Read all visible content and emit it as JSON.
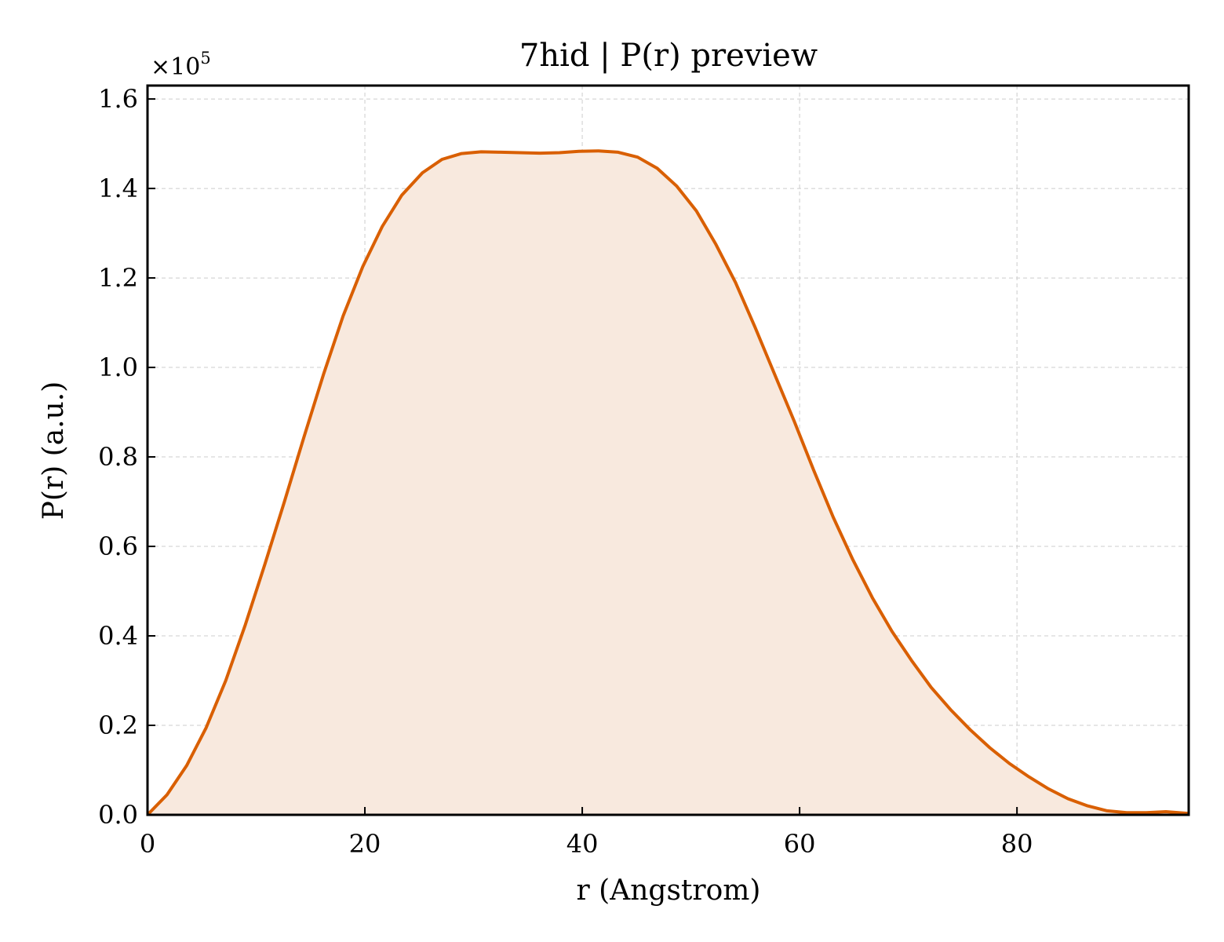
{
  "chart_data": {
    "type": "area",
    "title": "7hid | P(r) preview",
    "xlabel": "r (Angstrom)",
    "ylabel": "P(r) (a.u.)",
    "y_multiplier_label": "×10",
    "y_multiplier_exponent": "5",
    "xlim": [
      0,
      95.8
    ],
    "ylim": [
      0,
      1.63
    ],
    "x_ticks": [
      0,
      20,
      40,
      60,
      80
    ],
    "x_tick_labels": [
      "0",
      "20",
      "40",
      "60",
      "80"
    ],
    "y_ticks": [
      0,
      0.2,
      0.4,
      0.6,
      0.8,
      1.0,
      1.2,
      1.4,
      1.6
    ],
    "y_tick_labels": [
      "0.0",
      "0.2",
      "0.4",
      "0.6",
      "0.8",
      "1.0",
      "1.2",
      "1.4",
      "1.6"
    ],
    "grid": true,
    "colors": {
      "line": "#d95f02",
      "fill": "#f8e9de",
      "grid": "#cccccc"
    },
    "series": [
      {
        "x": [
          0,
          1.8,
          3.6,
          5.4,
          7.2,
          9.0,
          10.8,
          12.6,
          14.4,
          16.2,
          18.0,
          19.8,
          21.6,
          23.4,
          25.3,
          27.1,
          28.9,
          30.7,
          32.5,
          34.3,
          36.1,
          37.9,
          39.7,
          41.5,
          43.3,
          45.1,
          46.9,
          48.7,
          50.5,
          52.3,
          54.1,
          55.9,
          57.7,
          59.5,
          61.3,
          63.1,
          64.9,
          66.7,
          68.5,
          70.3,
          72.1,
          73.9,
          75.7,
          77.5,
          79.3,
          81.1,
          82.9,
          84.7,
          86.5,
          88.3,
          90.1,
          91.9,
          93.7,
          95.8
        ],
        "y": [
          0.0,
          0.045,
          0.11,
          0.195,
          0.3,
          0.425,
          0.56,
          0.7,
          0.845,
          0.985,
          1.115,
          1.225,
          1.315,
          1.385,
          1.435,
          1.465,
          1.478,
          1.482,
          1.481,
          1.48,
          1.479,
          1.48,
          1.483,
          1.484,
          1.481,
          1.47,
          1.445,
          1.405,
          1.35,
          1.275,
          1.19,
          1.09,
          0.985,
          0.88,
          0.77,
          0.665,
          0.57,
          0.485,
          0.41,
          0.345,
          0.285,
          0.235,
          0.19,
          0.15,
          0.115,
          0.085,
          0.058,
          0.036,
          0.02,
          0.009,
          0.005,
          0.005,
          0.007,
          0.003
        ]
      }
    ]
  }
}
